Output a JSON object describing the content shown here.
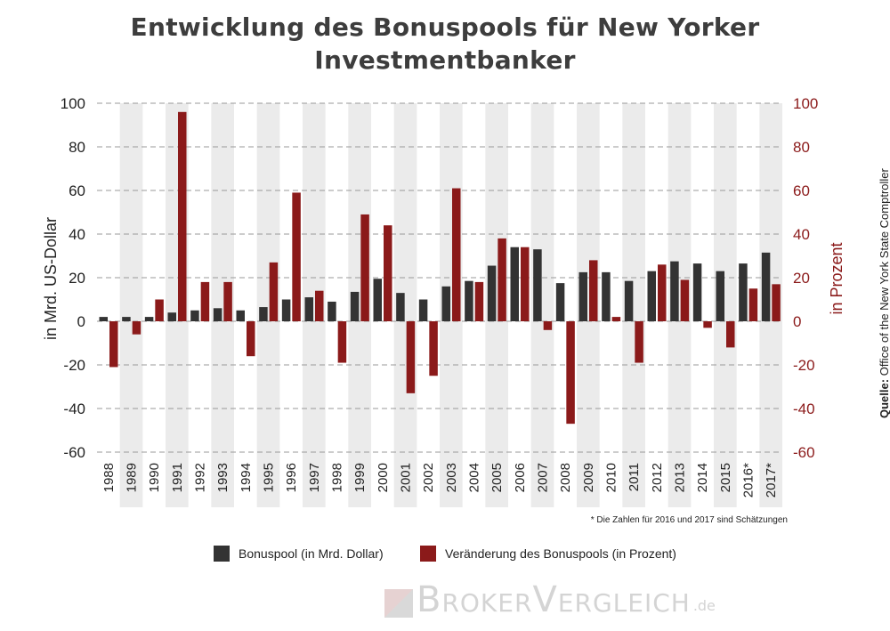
{
  "title_line1": "Entwicklung des Bonuspools für New Yorker",
  "title_line2": "Investmentbanker",
  "source_label": "Quelle:",
  "source_text": "Office of the New York State Comptroller",
  "footnote": "* Die Zahlen für 2016 und 2017 sind Schätzungen",
  "logo": {
    "text": "BrokerVergleich",
    "tld": ".de"
  },
  "colors": {
    "bonuspool": "#333333",
    "change": "#8b1a1a",
    "band": "#ebebeb",
    "grid": "#999999"
  },
  "chart_data": {
    "type": "bar",
    "ylabel_left": "in Mrd. US-Dollar",
    "ylabel_right": "in Prozent",
    "ylim": [
      -60,
      100
    ],
    "yticks": [
      -60,
      -40,
      -20,
      0,
      20,
      40,
      60,
      80,
      100
    ],
    "grid": true,
    "legend_position": "bottom",
    "categories": [
      "1988",
      "1989",
      "1990",
      "1991",
      "1992",
      "1993",
      "1994",
      "1995",
      "1996",
      "1997",
      "1998",
      "1999",
      "2000",
      "2001",
      "2002",
      "2003",
      "2004",
      "2005",
      "2006",
      "2007",
      "2008",
      "2009",
      "2010",
      "2011",
      "2012",
      "2013",
      "2014",
      "2015",
      "2016*",
      "2017*"
    ],
    "series": [
      {
        "name": "Bonuspool (in Mrd. Dollar)",
        "axis": "left",
        "values": [
          2,
          2,
          2,
          4,
          5,
          6,
          5,
          6.5,
          10,
          11,
          9,
          13.5,
          19.5,
          13,
          10,
          16,
          18.5,
          25.5,
          34,
          33,
          17.5,
          22.5,
          22.5,
          18.5,
          23,
          27.5,
          26.5,
          23,
          26.5,
          31.5
        ]
      },
      {
        "name": "Veränderung des Bonuspools (in Prozent)",
        "axis": "right",
        "values": [
          -21,
          -6,
          10,
          96,
          18,
          18,
          -16,
          27,
          59,
          14,
          -19,
          49,
          44,
          -33,
          -25,
          61,
          18,
          38,
          34,
          -4,
          -47,
          28,
          2,
          -19,
          26,
          19,
          -3,
          -12,
          15,
          17
        ]
      }
    ]
  }
}
